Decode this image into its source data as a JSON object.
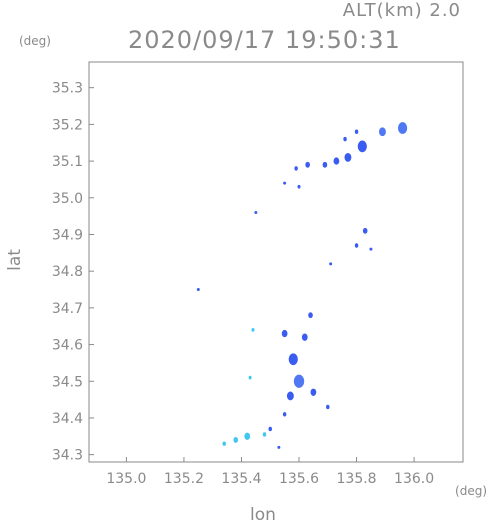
{
  "header": {
    "alt_label": "ALT(km)  2.0",
    "timestamp": "2020/09/17 19:50:31"
  },
  "colors": {
    "axis": "#8a8a8a",
    "echo_strong": "#3a5cf0",
    "echo_mid": "#4f78f2",
    "echo_light": "#3fc7f0"
  },
  "chart_data": {
    "type": "heatmap",
    "xlabel": "lon",
    "ylabel": "lat",
    "x_unit": "(deg)",
    "y_unit": "(deg)",
    "xlim": [
      134.87,
      136.17
    ],
    "ylim": [
      34.28,
      35.37
    ],
    "x_ticks": [
      135.0,
      135.2,
      135.4,
      135.6,
      135.8,
      136.0
    ],
    "x_tick_labels": [
      "135.0",
      "135.2",
      "135.4",
      "135.6",
      "135.8",
      "136.0"
    ],
    "y_ticks": [
      34.3,
      34.4,
      34.5,
      34.6,
      34.7,
      34.8,
      34.9,
      35.0,
      35.1,
      35.2,
      35.3
    ],
    "y_tick_labels": [
      "34.3",
      "34.4",
      "34.5",
      "34.6",
      "34.7",
      "34.8",
      "34.9",
      "35.0",
      "35.1",
      "35.2",
      "35.3"
    ],
    "echoes": [
      {
        "lon": 135.96,
        "lat": 35.19,
        "size": 0.016,
        "level": "mid"
      },
      {
        "lon": 135.89,
        "lat": 35.18,
        "size": 0.012,
        "level": "mid"
      },
      {
        "lon": 135.82,
        "lat": 35.14,
        "size": 0.016,
        "level": "strong"
      },
      {
        "lon": 135.77,
        "lat": 35.11,
        "size": 0.012,
        "level": "strong"
      },
      {
        "lon": 135.73,
        "lat": 35.1,
        "size": 0.01,
        "level": "strong"
      },
      {
        "lon": 135.69,
        "lat": 35.09,
        "size": 0.008,
        "level": "strong"
      },
      {
        "lon": 135.63,
        "lat": 35.09,
        "size": 0.008,
        "level": "strong"
      },
      {
        "lon": 135.59,
        "lat": 35.08,
        "size": 0.006,
        "level": "strong"
      },
      {
        "lon": 135.76,
        "lat": 35.16,
        "size": 0.006,
        "level": "strong"
      },
      {
        "lon": 135.8,
        "lat": 35.18,
        "size": 0.006,
        "level": "strong"
      },
      {
        "lon": 135.6,
        "lat": 35.03,
        "size": 0.005,
        "level": "strong"
      },
      {
        "lon": 135.55,
        "lat": 35.04,
        "size": 0.004,
        "level": "strong"
      },
      {
        "lon": 135.45,
        "lat": 34.96,
        "size": 0.004,
        "level": "strong"
      },
      {
        "lon": 135.83,
        "lat": 34.91,
        "size": 0.008,
        "level": "strong"
      },
      {
        "lon": 135.8,
        "lat": 34.87,
        "size": 0.006,
        "level": "strong"
      },
      {
        "lon": 135.85,
        "lat": 34.86,
        "size": 0.004,
        "level": "strong"
      },
      {
        "lon": 135.71,
        "lat": 34.82,
        "size": 0.004,
        "level": "strong"
      },
      {
        "lon": 135.25,
        "lat": 34.75,
        "size": 0.004,
        "level": "strong"
      },
      {
        "lon": 135.64,
        "lat": 34.68,
        "size": 0.008,
        "level": "strong"
      },
      {
        "lon": 135.55,
        "lat": 34.63,
        "size": 0.01,
        "level": "strong"
      },
      {
        "lon": 135.62,
        "lat": 34.62,
        "size": 0.01,
        "level": "strong"
      },
      {
        "lon": 135.58,
        "lat": 34.56,
        "size": 0.016,
        "level": "strong"
      },
      {
        "lon": 135.6,
        "lat": 34.5,
        "size": 0.018,
        "level": "mid"
      },
      {
        "lon": 135.57,
        "lat": 34.46,
        "size": 0.012,
        "level": "strong"
      },
      {
        "lon": 135.65,
        "lat": 34.47,
        "size": 0.01,
        "level": "strong"
      },
      {
        "lon": 135.55,
        "lat": 34.41,
        "size": 0.006,
        "level": "strong"
      },
      {
        "lon": 135.7,
        "lat": 34.43,
        "size": 0.006,
        "level": "strong"
      },
      {
        "lon": 135.5,
        "lat": 34.37,
        "size": 0.006,
        "level": "strong"
      },
      {
        "lon": 135.44,
        "lat": 34.64,
        "size": 0.005,
        "level": "light"
      },
      {
        "lon": 135.43,
        "lat": 34.51,
        "size": 0.005,
        "level": "light"
      },
      {
        "lon": 135.42,
        "lat": 34.35,
        "size": 0.01,
        "level": "light"
      },
      {
        "lon": 135.38,
        "lat": 34.34,
        "size": 0.008,
        "level": "light"
      },
      {
        "lon": 135.34,
        "lat": 34.33,
        "size": 0.006,
        "level": "light"
      },
      {
        "lon": 135.48,
        "lat": 34.355,
        "size": 0.006,
        "level": "light"
      },
      {
        "lon": 135.53,
        "lat": 34.32,
        "size": 0.004,
        "level": "strong"
      }
    ]
  }
}
